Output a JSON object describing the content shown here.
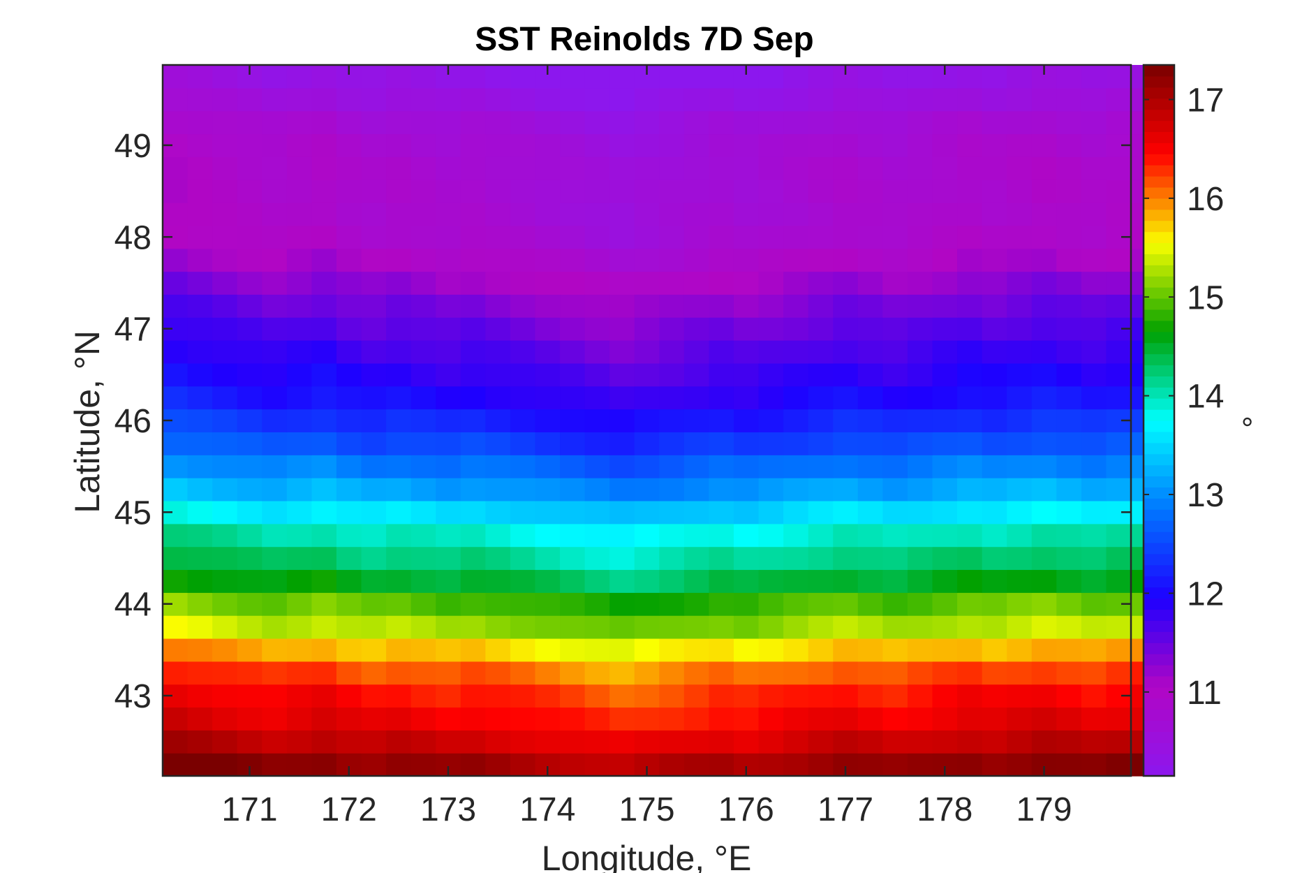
{
  "chart_data": {
    "type": "heatmap",
    "title": "SST Reinolds 7D Sep",
    "xlabel": "Longitude, °E",
    "ylabel": "Latitude, °N",
    "colorbar_label": "°",
    "xlim": [
      170.125,
      179.875
    ],
    "ylim": [
      42.125,
      49.875
    ],
    "clim": [
      10.15,
      17.35
    ],
    "x_ticks": [
      171,
      172,
      173,
      174,
      175,
      176,
      177,
      178,
      179
    ],
    "y_ticks": [
      43,
      44,
      45,
      46,
      47,
      48,
      49
    ],
    "colorbar_ticks": [
      11,
      12,
      13,
      14,
      15,
      16,
      17
    ],
    "colormap": [
      "#8c17ee",
      "#b106c4",
      "#1e00ff",
      "#0076ff",
      "#00ffff",
      "#00a000",
      "#faff00",
      "#ff0000",
      "#7a0000"
    ],
    "grid": false,
    "lon_start": 170.25,
    "lon_step": 0.25,
    "lat_start": 42.25,
    "lat_step": 0.25,
    "latitude_profile": [
      {
        "lat": 42.25,
        "sst": 17.2
      },
      {
        "lat": 42.5,
        "sst": 16.85
      },
      {
        "lat": 42.75,
        "sst": 16.6
      },
      {
        "lat": 43.0,
        "sst": 16.45
      },
      {
        "lat": 43.25,
        "sst": 16.2
      },
      {
        "lat": 43.5,
        "sst": 15.8
      },
      {
        "lat": 43.75,
        "sst": 15.3
      },
      {
        "lat": 44.0,
        "sst": 15.0
      },
      {
        "lat": 44.25,
        "sst": 14.55
      },
      {
        "lat": 44.5,
        "sst": 14.25
      },
      {
        "lat": 44.75,
        "sst": 14.0
      },
      {
        "lat": 45.0,
        "sst": 13.6
      },
      {
        "lat": 45.25,
        "sst": 13.2
      },
      {
        "lat": 45.5,
        "sst": 12.9
      },
      {
        "lat": 45.75,
        "sst": 12.55
      },
      {
        "lat": 46.0,
        "sst": 12.3
      },
      {
        "lat": 46.25,
        "sst": 12.05
      },
      {
        "lat": 46.5,
        "sst": 11.9
      },
      {
        "lat": 46.75,
        "sst": 11.75
      },
      {
        "lat": 47.0,
        "sst": 11.6
      },
      {
        "lat": 47.25,
        "sst": 11.45
      },
      {
        "lat": 47.5,
        "sst": 11.25
      },
      {
        "lat": 47.75,
        "sst": 11.05
      },
      {
        "lat": 48.0,
        "sst": 10.9
      },
      {
        "lat": 48.25,
        "sst": 10.85
      },
      {
        "lat": 48.5,
        "sst": 10.85
      },
      {
        "lat": 48.75,
        "sst": 10.85
      },
      {
        "lat": 49.0,
        "sst": 10.8
      },
      {
        "lat": 49.25,
        "sst": 10.7
      },
      {
        "lat": 49.5,
        "sst": 10.5
      },
      {
        "lat": 49.75,
        "sst": 10.35
      }
    ],
    "longitude_anomaly": [
      0.2,
      0.15,
      0.1,
      0.05,
      0.0,
      0.05,
      0.1,
      0.0,
      -0.05,
      0.0,
      -0.05,
      -0.1,
      -0.05,
      -0.1,
      -0.15,
      -0.2,
      -0.25,
      -0.3,
      -0.35,
      -0.3,
      -0.25,
      -0.2,
      -0.15,
      -0.2,
      -0.15,
      -0.1,
      -0.05,
      0.0,
      -0.05,
      -0.1,
      -0.05,
      0.0,
      0.05,
      0.0,
      0.05,
      0.1,
      0.05,
      0.0,
      0.05,
      0.1
    ]
  }
}
